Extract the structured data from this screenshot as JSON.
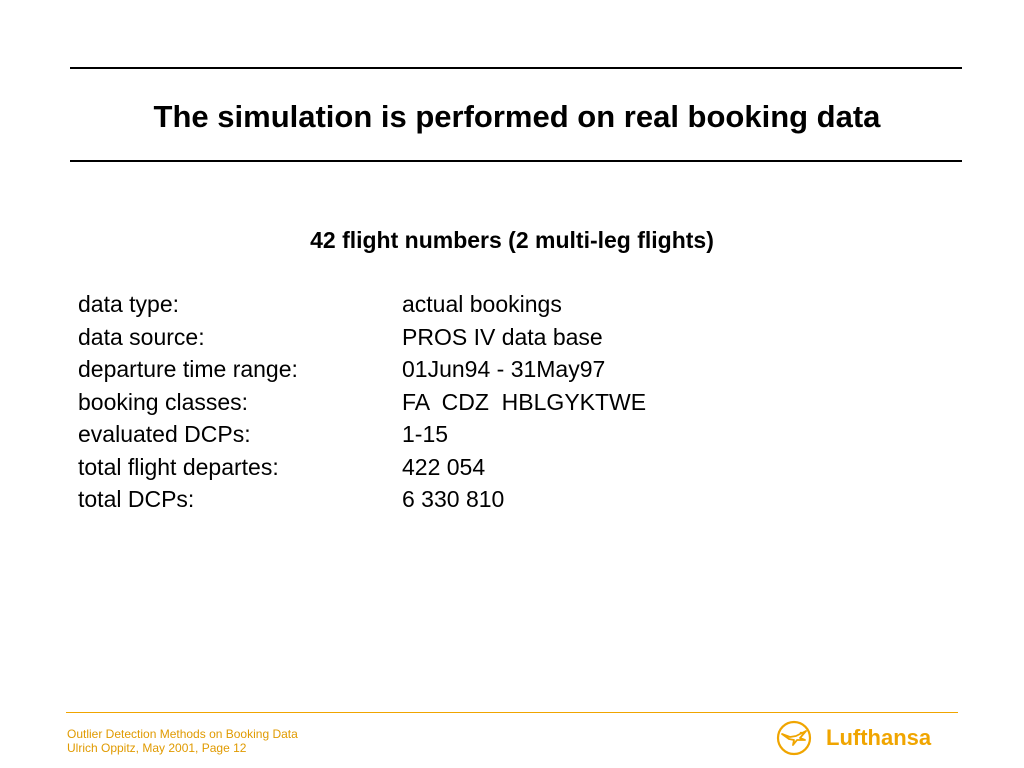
{
  "slide": {
    "title": "The simulation is performed on real booking data",
    "subtitle": "42 flight numbers (2 multi-leg flights)",
    "fields": [
      {
        "label": "data type:",
        "value": "actual bookings"
      },
      {
        "label": "data source:",
        "value": "PROS IV data base"
      },
      {
        "label": "departure time range:",
        "value": "01Jun94 - 31May97"
      },
      {
        "label": "booking classes:",
        "value": "FA  CDZ  HBLGYKTWE"
      },
      {
        "label": "evaluated DCPs:",
        "value": "1-15"
      },
      {
        "label": "total flight departes:",
        "value": "422 054"
      },
      {
        "label": "total DCPs:",
        "value": "6 330 810"
      }
    ]
  },
  "footer": {
    "line1": "Outlier Detection Methods on Booking Data",
    "line2": "Ulrich Oppitz, May 2001, Page 12",
    "brand": "Lufthansa",
    "logo_icon": "lufthansa-crane-icon",
    "accent_color": "#f0a500"
  }
}
